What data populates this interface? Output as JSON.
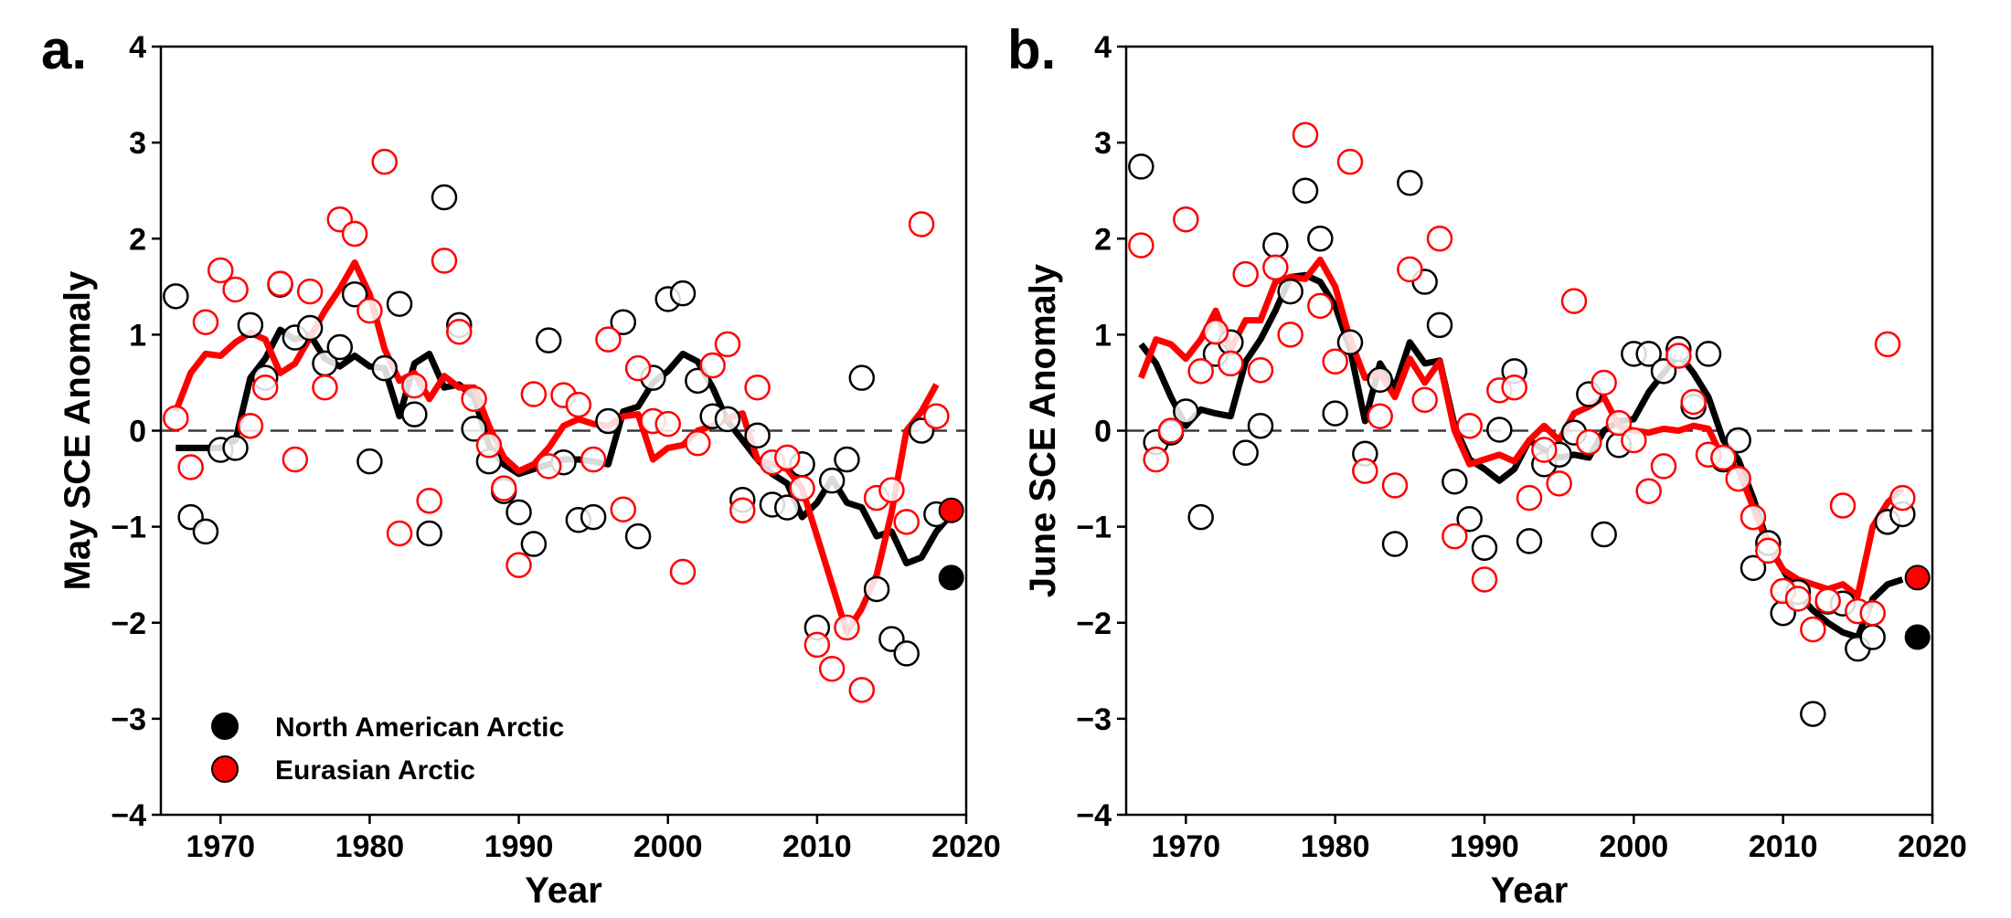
{
  "chart_data": [
    {
      "type": "line",
      "panel_label": "a.",
      "xlabel": "Year",
      "ylabel": "May SCE Anomaly",
      "xlim": [
        1966,
        2020
      ],
      "ylim": [
        -4,
        4
      ],
      "xticks": [
        1970,
        1980,
        1990,
        2000,
        2010,
        2020
      ],
      "yticks": [
        -4,
        -3,
        -2,
        -1,
        0,
        1,
        2,
        3,
        4
      ],
      "ytick_labels": [
        "−4",
        "−3",
        "−2",
        "−1",
        "0",
        "1",
        "2",
        "3",
        "4"
      ],
      "reference_line": 0,
      "legend": {
        "placement": "lower-left",
        "entries": [
          {
            "label": "North American Arctic",
            "color": "#000000"
          },
          {
            "label": "Eurasian Arctic",
            "color": "#ff0000"
          }
        ]
      },
      "series": [
        {
          "name": "North American Arctic",
          "color": "#000000",
          "points": {
            "x": [
              1967,
              1968,
              1969,
              1970,
              1971,
              1972,
              1973,
              1974,
              1975,
              1976,
              1977,
              1978,
              1979,
              1980,
              1981,
              1982,
              1983,
              1984,
              1985,
              1986,
              1987,
              1988,
              1989,
              1990,
              1991,
              1992,
              1993,
              1994,
              1995,
              1996,
              1997,
              1998,
              1999,
              2000,
              2001,
              2002,
              2003,
              2004,
              2005,
              2006,
              2007,
              2008,
              2009,
              2010,
              2011,
              2012,
              2013,
              2014,
              2015,
              2016,
              2017,
              2018
            ],
            "y": [
              1.4,
              -0.9,
              -1.05,
              -0.2,
              -0.18,
              1.1,
              0.55,
              1.52,
              0.97,
              1.07,
              0.7,
              0.87,
              1.42,
              -0.32,
              0.65,
              1.32,
              0.17,
              -1.07,
              2.43,
              1.1,
              0.02,
              -0.32,
              -0.63,
              -0.85,
              -1.18,
              0.94,
              -0.33,
              -0.93,
              -0.9,
              0.1,
              1.13,
              -1.1,
              0.55,
              1.37,
              1.43,
              0.52,
              0.15,
              0.12,
              -0.72,
              -0.05,
              -0.77,
              -0.8,
              -0.35,
              -2.05,
              -0.52,
              -0.3,
              0.55,
              -1.65,
              -2.17,
              -2.32,
              0.0,
              -0.87
            ]
          },
          "running_mean": {
            "x": [
              1967,
              1968,
              1969,
              1970,
              1971,
              1972,
              1973,
              1974,
              1975,
              1976,
              1977,
              1978,
              1979,
              1980,
              1981,
              1982,
              1983,
              1984,
              1985,
              1986,
              1987,
              1988,
              1989,
              1990,
              1991,
              1992,
              1993,
              1994,
              1995,
              1996,
              1997,
              1998,
              1999,
              2000,
              2001,
              2002,
              2003,
              2004,
              2005,
              2006,
              2007,
              2008,
              2009,
              2010,
              2011,
              2012,
              2013,
              2014,
              2015,
              2016,
              2017,
              2018,
              2019
            ],
            "y": [
              -0.18,
              -0.18,
              -0.18,
              -0.18,
              -0.1,
              0.55,
              0.75,
              1.05,
              0.95,
              1.0,
              0.75,
              0.67,
              0.78,
              0.67,
              0.65,
              0.15,
              0.7,
              0.8,
              0.45,
              0.48,
              0.35,
              -0.15,
              -0.35,
              -0.45,
              -0.4,
              -0.35,
              -0.3,
              -0.3,
              -0.32,
              -0.35,
              0.2,
              0.25,
              0.5,
              0.62,
              0.8,
              0.72,
              0.45,
              0.1,
              -0.1,
              -0.3,
              -0.45,
              -0.55,
              -0.9,
              -0.75,
              -0.5,
              -0.75,
              -0.8,
              -1.1,
              -1.05,
              -1.38,
              -1.32,
              -1.05,
              -0.87
            ]
          },
          "value_2019": -1.53
        },
        {
          "name": "Eurasian Arctic",
          "color": "#ff0000",
          "points": {
            "x": [
              1967,
              1968,
              1969,
              1970,
              1971,
              1972,
              1973,
              1974,
              1975,
              1976,
              1977,
              1978,
              1979,
              1980,
              1981,
              1982,
              1983,
              1984,
              1985,
              1986,
              1987,
              1988,
              1989,
              1990,
              1991,
              1992,
              1993,
              1994,
              1995,
              1996,
              1997,
              1998,
              1999,
              2000,
              2001,
              2002,
              2003,
              2004,
              2005,
              2006,
              2007,
              2008,
              2009,
              2010,
              2011,
              2012,
              2013,
              2014,
              2015,
              2016,
              2017,
              2018
            ],
            "y": [
              0.13,
              -0.38,
              1.13,
              1.67,
              1.47,
              0.05,
              0.45,
              1.53,
              -0.3,
              1.45,
              0.45,
              2.2,
              2.05,
              1.25,
              2.8,
              -1.07,
              0.47,
              -0.73,
              1.77,
              1.03,
              0.33,
              -0.15,
              -0.6,
              -1.4,
              0.38,
              -0.37,
              0.37,
              0.27,
              -0.3,
              0.95,
              -0.82,
              0.65,
              0.1,
              0.07,
              -1.47,
              -0.13,
              0.68,
              0.9,
              -0.83,
              0.45,
              -0.33,
              -0.28,
              -0.6,
              -2.23,
              -2.48,
              -2.05,
              -2.7,
              -0.7,
              -0.62,
              -0.95,
              2.15,
              0.15
            ]
          },
          "running_mean": {
            "x": [
              1967,
              1968,
              1969,
              1970,
              1971,
              1972,
              1973,
              1974,
              1975,
              1976,
              1977,
              1978,
              1979,
              1980,
              1981,
              1982,
              1983,
              1984,
              1985,
              1986,
              1987,
              1988,
              1989,
              1990,
              1991,
              1992,
              1993,
              1994,
              1995,
              1996,
              1997,
              1998,
              1999,
              2000,
              2001,
              2002,
              2003,
              2004,
              2005,
              2006,
              2007,
              2008,
              2009,
              2010,
              2011,
              2012,
              2013,
              2014,
              2015,
              2016,
              2017,
              2018
            ],
            "y": [
              0.2,
              0.6,
              0.8,
              0.78,
              0.92,
              1.02,
              0.95,
              0.6,
              0.7,
              0.97,
              1.25,
              1.48,
              1.75,
              1.42,
              0.85,
              0.52,
              0.6,
              0.33,
              0.57,
              0.45,
              0.45,
              0.05,
              -0.28,
              -0.42,
              -0.35,
              -0.18,
              0.05,
              0.12,
              0.07,
              0.05,
              0.15,
              0.17,
              -0.3,
              -0.18,
              -0.15,
              0.0,
              0.05,
              0.13,
              0.18,
              -0.3,
              -0.35,
              -0.4,
              -0.6,
              -1.1,
              -1.6,
              -2.1,
              -1.85,
              -1.5,
              -0.85,
              0.0,
              0.2,
              0.48
            ]
          },
          "value_2019": -0.83
        }
      ]
    },
    {
      "type": "line",
      "panel_label": "b.",
      "xlabel": "Year",
      "ylabel": "June SCE Anomaly",
      "xlim": [
        1966,
        2020
      ],
      "ylim": [
        -4,
        4
      ],
      "xticks": [
        1970,
        1980,
        1990,
        2000,
        2010,
        2020
      ],
      "yticks": [
        -4,
        -3,
        -2,
        -1,
        0,
        1,
        2,
        3,
        4
      ],
      "ytick_labels": [
        "−4",
        "−3",
        "−2",
        "−1",
        "0",
        "1",
        "2",
        "3",
        "4"
      ],
      "reference_line": 0,
      "series": [
        {
          "name": "North American Arctic",
          "color": "#000000",
          "points": {
            "x": [
              1967,
              1968,
              1969,
              1970,
              1971,
              1972,
              1973,
              1974,
              1975,
              1976,
              1977,
              1978,
              1979,
              1980,
              1981,
              1982,
              1983,
              1984,
              1985,
              1986,
              1987,
              1988,
              1989,
              1990,
              1991,
              1992,
              1993,
              1994,
              1995,
              1996,
              1997,
              1998,
              1999,
              2000,
              2001,
              2002,
              2003,
              2004,
              2005,
              2006,
              2007,
              2008,
              2009,
              2010,
              2011,
              2012,
              2013,
              2014,
              2015,
              2016,
              2017,
              2018
            ],
            "y": [
              2.75,
              -0.12,
              -0.02,
              0.2,
              -0.9,
              0.8,
              0.92,
              -0.23,
              0.05,
              1.93,
              1.45,
              2.5,
              2.0,
              0.18,
              0.92,
              -0.24,
              0.53,
              -1.18,
              2.58,
              1.55,
              1.1,
              -0.53,
              -0.92,
              -1.22,
              0.01,
              0.62,
              -1.15,
              -0.35,
              -0.25,
              -0.02,
              0.38,
              -1.08,
              -0.15,
              0.8,
              0.8,
              0.62,
              0.85,
              0.25,
              0.8,
              -0.3,
              -0.1,
              -1.43,
              -1.17,
              -1.9,
              -1.68,
              -2.95,
              -1.78,
              -1.8,
              -2.27,
              -2.15,
              -0.95,
              -0.87
            ]
          },
          "running_mean": {
            "x": [
              1967,
              1968,
              1969,
              1970,
              1971,
              1972,
              1973,
              1974,
              1975,
              1976,
              1977,
              1978,
              1979,
              1980,
              1981,
              1982,
              1983,
              1984,
              1985,
              1986,
              1987,
              1988,
              1989,
              1990,
              1991,
              1992,
              1993,
              1994,
              1995,
              1996,
              1997,
              1998,
              1999,
              2000,
              2001,
              2002,
              2003,
              2004,
              2005,
              2006,
              2007,
              2008,
              2009,
              2010,
              2011,
              2012,
              2013,
              2014,
              2015,
              2016,
              2017,
              2018
            ],
            "y": [
              0.9,
              0.7,
              0.35,
              0.05,
              0.22,
              0.18,
              0.15,
              0.72,
              0.95,
              1.25,
              1.6,
              1.62,
              1.55,
              1.3,
              0.85,
              0.1,
              0.7,
              0.45,
              0.92,
              0.7,
              0.73,
              0.05,
              -0.3,
              -0.4,
              -0.52,
              -0.4,
              -0.1,
              -0.2,
              -0.28,
              -0.25,
              -0.28,
              0.0,
              0.1,
              0.12,
              0.4,
              0.6,
              0.8,
              0.6,
              0.35,
              -0.1,
              -0.3,
              -0.7,
              -1.18,
              -1.45,
              -1.7,
              -1.87,
              -2.0,
              -2.1,
              -2.15,
              -1.75,
              -1.6,
              -1.55
            ]
          },
          "value_2019": -2.15
        },
        {
          "name": "Eurasian Arctic",
          "color": "#ff0000",
          "points": {
            "x": [
              1967,
              1968,
              1969,
              1970,
              1971,
              1972,
              1973,
              1974,
              1975,
              1976,
              1977,
              1978,
              1979,
              1980,
              1981,
              1982,
              1983,
              1984,
              1985,
              1986,
              1987,
              1988,
              1989,
              1990,
              1991,
              1992,
              1993,
              1994,
              1995,
              1996,
              1997,
              1998,
              1999,
              2000,
              2001,
              2002,
              2003,
              2004,
              2005,
              2006,
              2007,
              2008,
              2009,
              2010,
              2011,
              2012,
              2013,
              2014,
              2015,
              2016,
              2017,
              2018
            ],
            "y": [
              1.93,
              -0.3,
              0.0,
              2.2,
              0.62,
              1.03,
              0.7,
              1.63,
              0.63,
              1.7,
              1.0,
              3.08,
              1.3,
              0.72,
              2.8,
              -0.42,
              0.15,
              -0.57,
              1.68,
              0.32,
              2.0,
              -1.1,
              0.05,
              -1.55,
              0.42,
              0.45,
              -0.7,
              -0.2,
              -0.55,
              1.35,
              -0.12,
              0.5,
              0.08,
              -0.1,
              -0.63,
              -0.37,
              0.78,
              0.3,
              -0.25,
              -0.28,
              -0.5,
              -0.9,
              -1.25,
              -1.67,
              -1.75,
              -2.07,
              -1.77,
              -0.78,
              -1.88,
              -1.9,
              0.9,
              -0.7
            ]
          },
          "running_mean": {
            "x": [
              1967,
              1968,
              1969,
              1970,
              1971,
              1972,
              1973,
              1974,
              1975,
              1976,
              1977,
              1978,
              1979,
              1980,
              1981,
              1982,
              1983,
              1984,
              1985,
              1986,
              1987,
              1988,
              1989,
              1990,
              1991,
              1992,
              1993,
              1994,
              1995,
              1996,
              1997,
              1998,
              1999,
              2000,
              2001,
              2002,
              2003,
              2004,
              2005,
              2006,
              2007,
              2008,
              2009,
              2010,
              2011,
              2012,
              2013,
              2014,
              2015,
              2016,
              2017,
              2018
            ],
            "y": [
              0.55,
              0.95,
              0.9,
              0.75,
              0.95,
              1.25,
              0.85,
              1.15,
              1.15,
              1.55,
              1.6,
              1.58,
              1.78,
              1.5,
              0.95,
              0.55,
              0.6,
              0.35,
              0.75,
              0.5,
              0.72,
              0.0,
              -0.35,
              -0.3,
              -0.25,
              -0.32,
              -0.1,
              0.05,
              -0.1,
              0.18,
              0.25,
              0.35,
              0.05,
              0.0,
              -0.02,
              0.02,
              0.0,
              0.05,
              0.02,
              -0.3,
              -0.4,
              -0.8,
              -1.2,
              -1.45,
              -1.55,
              -1.6,
              -1.65,
              -1.6,
              -1.72,
              -1.0,
              -0.75,
              -0.6
            ]
          },
          "value_2019": -1.53
        }
      ]
    }
  ]
}
